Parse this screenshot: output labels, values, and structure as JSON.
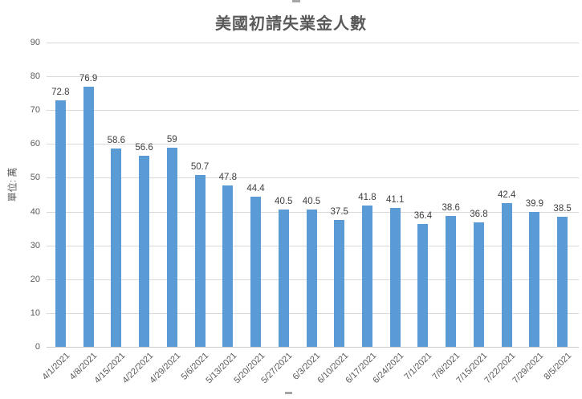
{
  "chart_data": {
    "type": "bar",
    "title": "美國初請失業金人數",
    "ylabel": "單位: 萬",
    "xlabel": "",
    "categories": [
      "4/1/2021",
      "4/8/2021",
      "4/15/2021",
      "4/22/2021",
      "4/29/2021",
      "5/6/2021",
      "5/13/2021",
      "5/20/2021",
      "5/27/2021",
      "6/3/2021",
      "6/10/2021",
      "6/17/2021",
      "6/24/2021",
      "7/1/2021",
      "7/8/2021",
      "7/15/2021",
      "7/22/2021",
      "7/29/2021",
      "8/5/2021"
    ],
    "values": [
      72.8,
      76.9,
      58.6,
      56.6,
      59,
      50.7,
      47.8,
      44.4,
      40.5,
      40.5,
      37.5,
      41.8,
      41.1,
      36.4,
      38.6,
      36.8,
      42.4,
      39.9,
      38.5
    ],
    "value_labels": [
      "72.8",
      "76.9",
      "58.6",
      "56.6",
      "59",
      "50.7",
      "47.8",
      "44.4",
      "40.5",
      "40.5",
      "37.5",
      "41.8",
      "41.1",
      "36.4",
      "38.6",
      "36.8",
      "42.4",
      "39.9",
      "38.5"
    ],
    "ylim": [
      0,
      90
    ],
    "ytick_step": 10,
    "grid": true,
    "legend": "none",
    "colors": {
      "bar": "#5b9bd5",
      "gridline": "#d9d9d9",
      "axis_text": "#595959",
      "data_label": "#404040",
      "title": "#595959"
    }
  }
}
